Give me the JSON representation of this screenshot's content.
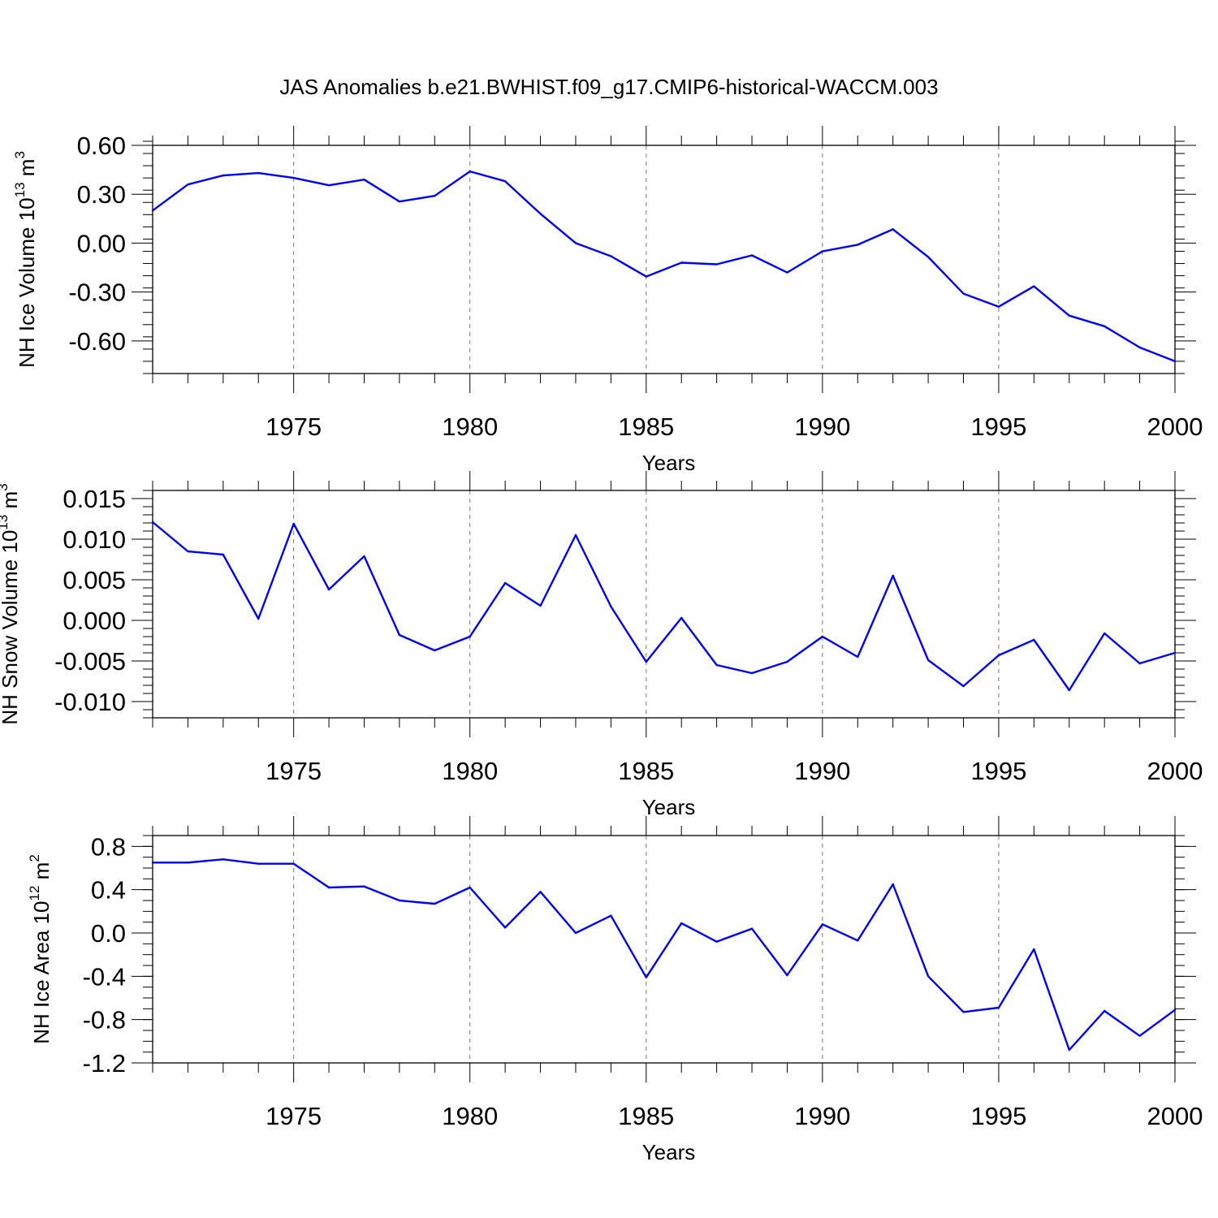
{
  "title": "JAS Anomalies b.e21.BWHIST.f09_g17.CMIP6-historical-WACCM.003",
  "chart_data": [
    {
      "type": "line",
      "ylabel_main": "NH Ice Volume 10",
      "ylabel_exp": "13",
      "ylabel_unit": " m",
      "ylabel_unit_exp": "3",
      "xlabel": "Years",
      "xlim": [
        1971,
        2000
      ],
      "ylim": [
        -0.8,
        0.6
      ],
      "x_ticks": [
        1975,
        1980,
        1985,
        1990,
        1995,
        2000
      ],
      "y_ticks": [
        0.6,
        0.3,
        0.0,
        -0.3,
        -0.6
      ],
      "y_tick_labels": [
        "0.60",
        "0.30",
        "0.00",
        "-0.30",
        "-0.60"
      ],
      "y_minor_step": 0.075,
      "grid": "dashed vertical at major x ticks",
      "color": "#0000ff",
      "x": [
        1971,
        1972,
        1973,
        1974,
        1975,
        1976,
        1977,
        1978,
        1979,
        1980,
        1981,
        1982,
        1983,
        1984,
        1985,
        1986,
        1987,
        1988,
        1989,
        1990,
        1991,
        1992,
        1993,
        1994,
        1995,
        1996,
        1997,
        1998,
        1999,
        2000
      ],
      "values": [
        0.2,
        0.36,
        0.415,
        0.43,
        0.4,
        0.355,
        0.39,
        0.255,
        0.29,
        0.44,
        0.38,
        0.18,
        0.0,
        -0.08,
        -0.205,
        -0.12,
        -0.13,
        -0.075,
        -0.18,
        -0.05,
        -0.01,
        0.085,
        -0.085,
        -0.31,
        -0.39,
        -0.265,
        -0.445,
        -0.51,
        -0.64,
        -0.725
      ]
    },
    {
      "type": "line",
      "ylabel_main": "NH Snow Volume 10",
      "ylabel_exp": "13",
      "ylabel_unit": " m",
      "ylabel_unit_exp": "3",
      "xlabel": "Years",
      "xlim": [
        1971,
        2000
      ],
      "ylim": [
        -0.012,
        0.016
      ],
      "x_ticks": [
        1975,
        1980,
        1985,
        1990,
        1995,
        2000
      ],
      "y_ticks": [
        0.015,
        0.01,
        0.005,
        0.0,
        -0.005,
        -0.01
      ],
      "y_tick_labels": [
        "0.015",
        "0.010",
        "0.005",
        "0.000",
        "-0.005",
        "-0.010"
      ],
      "y_minor_step": 0.001,
      "grid": "dashed vertical at major x ticks",
      "color": "#0000ff",
      "x": [
        1971,
        1972,
        1973,
        1974,
        1975,
        1976,
        1977,
        1978,
        1979,
        1980,
        1981,
        1982,
        1983,
        1984,
        1985,
        1986,
        1987,
        1988,
        1989,
        1990,
        1991,
        1992,
        1993,
        1994,
        1995,
        1996,
        1997,
        1998,
        1999,
        2000
      ],
      "values": [
        0.0121,
        0.0085,
        0.0081,
        0.0002,
        0.0119,
        0.0038,
        0.0079,
        -0.0018,
        -0.0037,
        -0.002,
        0.0046,
        0.0018,
        0.0105,
        0.0017,
        -0.0051,
        0.0003,
        -0.0055,
        -0.0065,
        -0.0051,
        -0.002,
        -0.0045,
        0.0055,
        -0.0049,
        -0.0081,
        -0.0043,
        -0.0024,
        -0.0086,
        -0.0016,
        -0.0053,
        -0.004
      ]
    },
    {
      "type": "line",
      "ylabel_main": "NH Ice Area 10",
      "ylabel_exp": "12",
      "ylabel_unit": " m",
      "ylabel_unit_exp": "2",
      "xlabel": "Years",
      "xlim": [
        1971,
        2000
      ],
      "ylim": [
        -1.2,
        0.9
      ],
      "x_ticks": [
        1975,
        1980,
        1985,
        1990,
        1995,
        2000
      ],
      "y_ticks": [
        0.8,
        0.4,
        0.0,
        -0.4,
        -0.8,
        -1.2
      ],
      "y_tick_labels": [
        "0.8",
        "0.4",
        "0.0",
        "-0.4",
        "-0.8",
        "-1.2"
      ],
      "y_minor_step": 0.1,
      "grid": "dashed vertical at major x ticks",
      "color": "#0000ff",
      "x": [
        1971,
        1972,
        1973,
        1974,
        1975,
        1976,
        1977,
        1978,
        1979,
        1980,
        1981,
        1982,
        1983,
        1984,
        1985,
        1986,
        1987,
        1988,
        1989,
        1990,
        1991,
        1992,
        1993,
        1994,
        1995,
        1996,
        1997,
        1998,
        1999,
        2000
      ],
      "values": [
        0.65,
        0.65,
        0.68,
        0.64,
        0.64,
        0.42,
        0.43,
        0.3,
        0.27,
        0.42,
        0.05,
        0.38,
        0.0,
        0.16,
        -0.41,
        0.09,
        -0.08,
        0.04,
        -0.39,
        0.08,
        -0.07,
        0.45,
        -0.4,
        -0.73,
        -0.69,
        -0.15,
        -1.08,
        -0.72,
        -0.95,
        -0.71
      ]
    }
  ]
}
